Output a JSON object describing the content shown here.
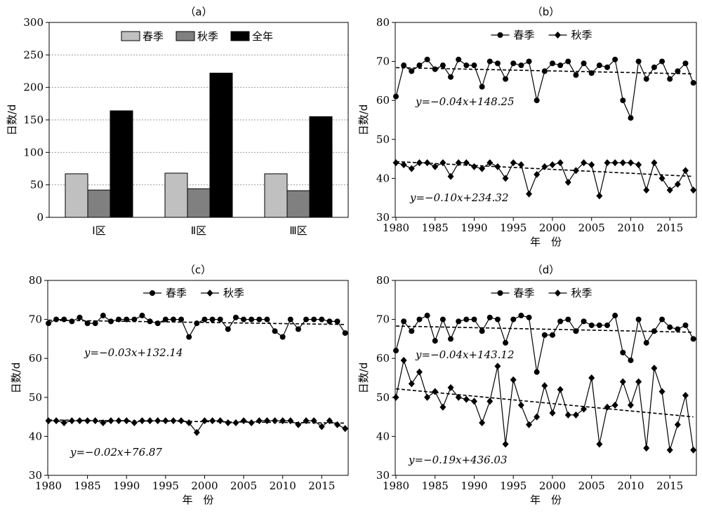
{
  "chart_data": [
    {
      "type": "bar",
      "title": "（a）",
      "ylabel": "日数/d",
      "ylim": [
        0,
        300
      ],
      "yticks": [
        0,
        50,
        100,
        150,
        200,
        250,
        300
      ],
      "grid": "horizontal-dotted",
      "legend": "top-center",
      "categories": [
        "Ⅰ区",
        "Ⅱ区",
        "Ⅲ区"
      ],
      "series": [
        {
          "name": "春季",
          "color": "#c0c0c0",
          "values": [
            67,
            68,
            67
          ]
        },
        {
          "name": "秋季",
          "color": "#808080",
          "values": [
            42,
            44,
            41
          ]
        },
        {
          "name": "全年",
          "color": "#000000",
          "values": [
            164,
            222,
            155
          ]
        }
      ]
    },
    {
      "type": "line",
      "title": "（b）",
      "xlabel": "年　份",
      "ylabel": "日数/d",
      "xlim": [
        1980,
        2018
      ],
      "ylim": [
        30,
        80
      ],
      "xticks": [
        1980,
        1985,
        1990,
        1995,
        2000,
        2005,
        2010,
        2015
      ],
      "yticks": [
        30,
        40,
        50,
        60,
        70,
        80
      ],
      "legend": "top-center",
      "x": [
        1980,
        1981,
        1982,
        1983,
        1984,
        1985,
        1986,
        1987,
        1988,
        1989,
        1990,
        1991,
        1992,
        1993,
        1994,
        1995,
        1996,
        1997,
        1998,
        1999,
        2000,
        2001,
        2002,
        2003,
        2004,
        2005,
        2006,
        2007,
        2008,
        2009,
        2010,
        2011,
        2012,
        2013,
        2014,
        2015,
        2016,
        2017,
        2018
      ],
      "series": [
        {
          "name": "春季",
          "marker": "circle",
          "values": [
            61,
            69,
            67.5,
            69,
            70.5,
            68,
            69,
            66,
            70.5,
            69,
            69,
            63.5,
            70,
            69.5,
            65.5,
            69.5,
            69,
            70,
            60,
            67.5,
            69.5,
            69,
            70,
            66.5,
            69.5,
            67,
            69,
            68.5,
            70.5,
            60,
            55.5,
            70,
            65.5,
            68.5,
            70,
            65.5,
            67.5,
            69.5,
            64.5
          ],
          "trend": {
            "equation": "y=−0.04x+148.25",
            "from": 68.4,
            "to": 66.8
          }
        },
        {
          "name": "秋季",
          "marker": "diamond",
          "values": [
            44,
            43.5,
            42.5,
            44,
            44,
            43,
            44,
            40.5,
            44,
            44,
            43,
            42.5,
            44,
            43,
            40,
            44,
            43.5,
            36,
            41,
            43,
            43.5,
            44,
            39,
            42,
            44,
            43.5,
            35.5,
            44,
            44,
            44,
            44,
            43.5,
            37,
            44,
            40,
            37,
            38.5,
            42,
            37
          ],
          "trend": {
            "equation": "y=−0.10x+234.32",
            "from": 44.3,
            "to": 40.5
          }
        }
      ]
    },
    {
      "type": "line",
      "title": "（c）",
      "xlabel": "年　份",
      "ylabel": "日数/d",
      "xlim": [
        1980,
        2018
      ],
      "ylim": [
        30,
        80
      ],
      "xticks": [
        1980,
        1985,
        1990,
        1995,
        2000,
        2005,
        2010,
        2015
      ],
      "yticks": [
        30,
        40,
        50,
        60,
        70,
        80
      ],
      "legend": "top-center",
      "x": [
        1980,
        1981,
        1982,
        1983,
        1984,
        1985,
        1986,
        1987,
        1988,
        1989,
        1990,
        1991,
        1992,
        1993,
        1994,
        1995,
        1996,
        1997,
        1998,
        1999,
        2000,
        2001,
        2002,
        2003,
        2004,
        2005,
        2006,
        2007,
        2008,
        2009,
        2010,
        2011,
        2012,
        2013,
        2014,
        2015,
        2016,
        2017,
        2018
      ],
      "series": [
        {
          "name": "春季",
          "marker": "circle",
          "values": [
            69,
            70,
            70,
            69.5,
            70.5,
            69,
            69,
            71,
            69.5,
            70,
            70,
            70,
            71,
            69.5,
            69,
            70,
            70,
            70,
            65.5,
            69,
            70,
            70,
            70,
            67.5,
            70.5,
            70,
            70,
            70,
            70,
            67,
            65.5,
            70,
            67.5,
            70,
            70,
            70,
            69.5,
            69.5,
            66.5
          ],
          "trend": {
            "equation": "y=−0.03x+132.14",
            "from": 69.8,
            "to": 68.7
          }
        },
        {
          "name": "秋季",
          "marker": "diamond",
          "values": [
            44,
            44,
            43.5,
            44,
            44,
            44,
            44,
            43.5,
            44,
            44,
            44,
            43.5,
            44,
            44,
            44,
            44,
            44,
            44,
            43.5,
            41,
            44,
            44,
            44,
            43.5,
            43.5,
            44,
            43.5,
            44,
            44,
            44,
            44,
            44,
            43,
            44,
            44,
            42.5,
            44,
            43,
            42
          ],
          "trend": {
            "equation": "y=−0.02x+76.87",
            "from": 44.2,
            "to": 43.4
          }
        }
      ]
    },
    {
      "type": "line",
      "title": "（d）",
      "xlabel": "年　份",
      "ylabel": "日数/d",
      "xlim": [
        1980,
        2018
      ],
      "ylim": [
        30,
        80
      ],
      "xticks": [
        1980,
        1985,
        1990,
        1995,
        2000,
        2005,
        2010,
        2015
      ],
      "yticks": [
        30,
        40,
        50,
        60,
        70,
        80
      ],
      "legend": "top-center",
      "x": [
        1980,
        1981,
        1982,
        1983,
        1984,
        1985,
        1986,
        1987,
        1988,
        1989,
        1990,
        1991,
        1992,
        1993,
        1994,
        1995,
        1996,
        1997,
        1998,
        1999,
        2000,
        2001,
        2002,
        2003,
        2004,
        2005,
        2006,
        2007,
        2008,
        2009,
        2010,
        2011,
        2012,
        2013,
        2014,
        2015,
        2016,
        2017,
        2018
      ],
      "series": [
        {
          "name": "春季",
          "marker": "circle",
          "values": [
            62,
            69.5,
            67,
            70,
            71,
            64.5,
            70,
            65,
            69.5,
            70,
            70,
            67,
            70.5,
            70,
            64,
            70,
            71,
            70.5,
            56.5,
            66,
            66,
            69.5,
            70,
            67,
            69.5,
            68.5,
            68.5,
            68.5,
            71,
            61.5,
            59.5,
            70,
            64,
            67,
            70,
            68,
            67.5,
            68.5,
            65
          ],
          "trend": {
            "equation": "y=−0.04x+143.12",
            "from": 68.3,
            "to": 66.7
          }
        },
        {
          "name": "秋季",
          "marker": "diamond",
          "values": [
            50,
            59.5,
            53.5,
            56.5,
            50,
            51.5,
            47.5,
            52.5,
            50,
            49.5,
            49,
            43.5,
            49,
            58,
            38,
            54.5,
            48,
            43,
            45,
            53,
            46,
            52,
            45.5,
            45.5,
            47,
            55,
            38,
            47.5,
            48,
            54,
            48,
            54,
            37,
            57.5,
            51.5,
            36.5,
            43,
            50.5,
            36.5
          ],
          "trend": {
            "equation": "y=−0.19x+436.03",
            "from": 52.2,
            "to": 45
          }
        }
      ]
    }
  ]
}
